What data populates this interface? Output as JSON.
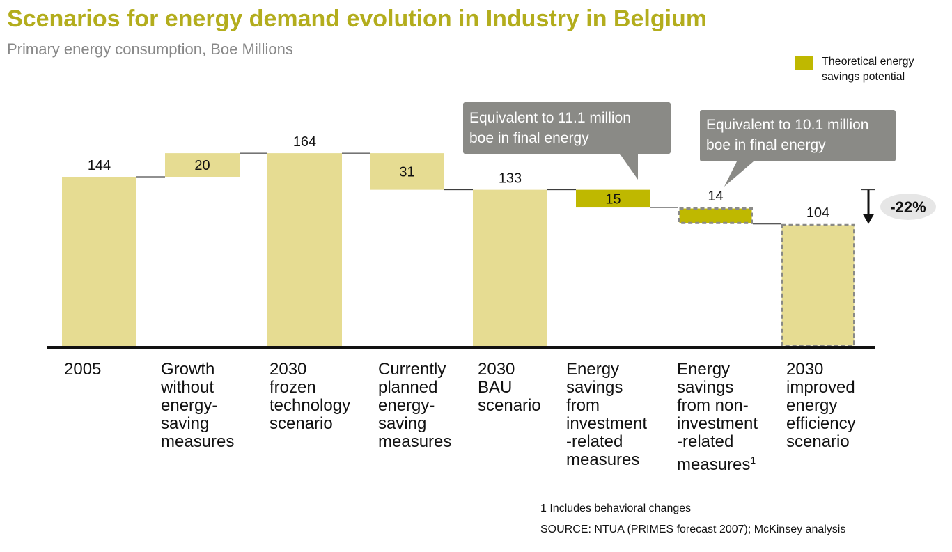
{
  "chart_data": {
    "type": "bar",
    "subtype": "waterfall",
    "title": "Scenarios for energy demand evolution in Industry in Belgium",
    "subtitle": "Primary energy consumption, Boe Millions",
    "categories": [
      "2005",
      "Growth without energy-saving measures",
      "2030 frozen technology scenario",
      "Currently planned energy-saving measures",
      "2030 BAU scenario",
      "Energy savings from investment-related measures",
      "Energy savings from non-investment-related measures",
      "2030 improved energy efficiency scenario"
    ],
    "category_lines": [
      [
        "2005"
      ],
      [
        "Growth",
        "without",
        "energy-",
        "saving",
        "measures"
      ],
      [
        "2030",
        "frozen",
        "technology",
        "scenario"
      ],
      [
        "Currently",
        "planned",
        "energy-",
        "saving",
        "measures"
      ],
      [
        "2030",
        "BAU",
        "scenario"
      ],
      [
        "Energy",
        "savings",
        "from",
        "investment",
        "-related",
        "measures"
      ],
      [
        "Energy",
        "savings",
        "from non-",
        "investment",
        "-related",
        "measures"
      ],
      [
        "2030",
        "improved",
        "energy",
        "efficiency",
        "scenario"
      ]
    ],
    "footnote_marker": "1",
    "values": [
      144,
      20,
      164,
      31,
      133,
      15,
      14,
      104
    ],
    "steps": [
      "total",
      "increase",
      "total",
      "decrease",
      "total",
      "decrease",
      "decrease",
      "total"
    ],
    "highlighted": [
      false,
      false,
      false,
      false,
      false,
      true,
      true,
      false
    ],
    "dashed": [
      false,
      false,
      false,
      false,
      false,
      false,
      true,
      true
    ],
    "value_labels": [
      "144",
      "20",
      "164",
      "31",
      "133",
      "15",
      "14",
      "104"
    ],
    "ylim": [
      0,
      170
    ],
    "change_label": "-22%",
    "legend": [
      {
        "label": "Theoretical energy savings potential",
        "color": "#bfb800"
      }
    ],
    "callouts": [
      {
        "text_lines": [
          "Equivalent to 11.1 million",
          "boe in final energy"
        ],
        "category_index": 5
      },
      {
        "text_lines": [
          "Equivalent to 10.1 million",
          "boe in final energy"
        ],
        "category_index": 6
      }
    ],
    "colors": {
      "bar": "#e6dc92",
      "highlight": "#bfb800",
      "callout": "#8a8a86",
      "title": "#b3ad1d"
    }
  },
  "footnote": "1 Includes behavioral changes",
  "source": "SOURCE: NTUA (PRIMES forecast 2007); McKinsey analysis"
}
